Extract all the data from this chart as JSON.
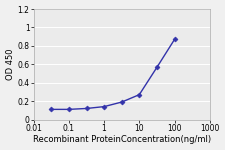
{
  "x": [
    0.032,
    0.1,
    0.32,
    1,
    3.2,
    10,
    32,
    100
  ],
  "y": [
    0.11,
    0.11,
    0.12,
    0.14,
    0.19,
    0.27,
    0.57,
    0.87
  ],
  "line_color": "#3333aa",
  "marker_color": "#3333aa",
  "marker": "D",
  "marker_size": 2.5,
  "line_width": 1.0,
  "xlim": [
    0.01,
    1000
  ],
  "ylim": [
    0,
    1.2
  ],
  "yticks": [
    0,
    0.2,
    0.4,
    0.6,
    0.8,
    1.0,
    1.2
  ],
  "ytick_labels": [
    "0",
    "0.2",
    "0.4",
    "0.6",
    "0.8",
    "1",
    "1.2"
  ],
  "xtick_labels": [
    "0.01",
    "0.1",
    "1",
    "10",
    "100",
    "1000"
  ],
  "xtick_values": [
    0.01,
    0.1,
    1,
    10,
    100,
    1000
  ],
  "ylabel": "OD 450",
  "xlabel": "Recombinant ProteinConcentration(ng/ml)",
  "ylabel_fontsize": 6,
  "xlabel_fontsize": 6,
  "tick_fontsize": 5.5,
  "plot_bg_color": "#ebebeb",
  "grid_color": "#ffffff",
  "fig_bg_color": "#f0f0f0"
}
